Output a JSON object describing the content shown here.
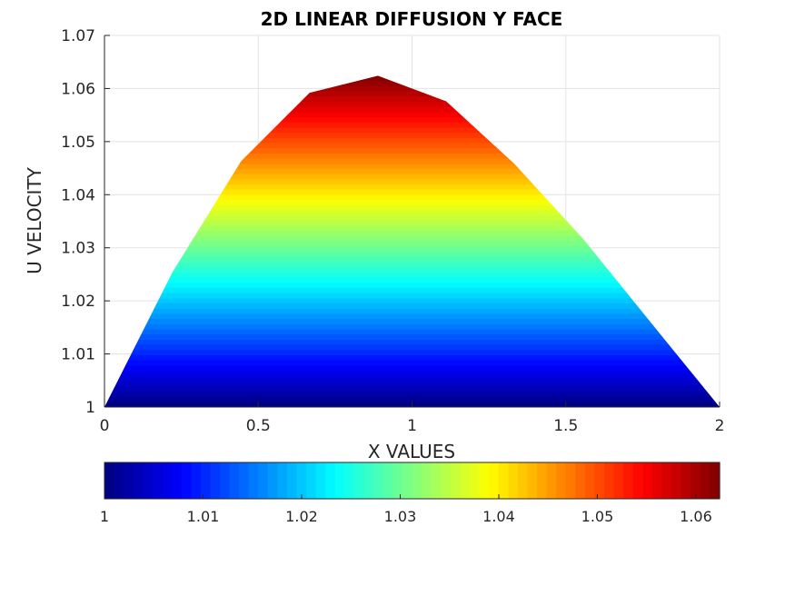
{
  "chart_data": {
    "type": "area",
    "title": "2D LINEAR DIFFUSION Y FACE",
    "xlabel": "X VALUES",
    "ylabel": "U VELOCITY",
    "xlim": [
      0,
      2
    ],
    "ylim": [
      1,
      1.07
    ],
    "x_ticks": [
      0,
      0.5,
      1,
      1.5,
      2
    ],
    "x_tick_labels": [
      "0",
      "0.5",
      "1",
      "1.5",
      "2"
    ],
    "y_ticks": [
      1,
      1.01,
      1.02,
      1.03,
      1.04,
      1.05,
      1.06,
      1.07
    ],
    "y_tick_labels": [
      "1",
      "1.01",
      "1.02",
      "1.03",
      "1.04",
      "1.05",
      "1.06",
      "1.07"
    ],
    "grid": true,
    "series": [
      {
        "x": [
          0,
          0.222,
          0.444,
          0.667,
          0.889,
          1.111,
          1.333,
          1.556,
          1.778,
          2.0
        ],
        "values": [
          1.0,
          1.0255,
          1.0463,
          1.0592,
          1.0624,
          1.0576,
          1.0458,
          1.0317,
          1.0158,
          1.0
        ]
      }
    ],
    "colormap": "jet",
    "colorbar": {
      "placement": "bottom",
      "range": [
        1,
        1.0624
      ],
      "ticks": [
        1,
        1.01,
        1.02,
        1.03,
        1.04,
        1.05,
        1.06
      ],
      "tick_labels": [
        "1",
        "1.01",
        "1.02",
        "1.03",
        "1.04",
        "1.05",
        "1.06"
      ]
    }
  }
}
